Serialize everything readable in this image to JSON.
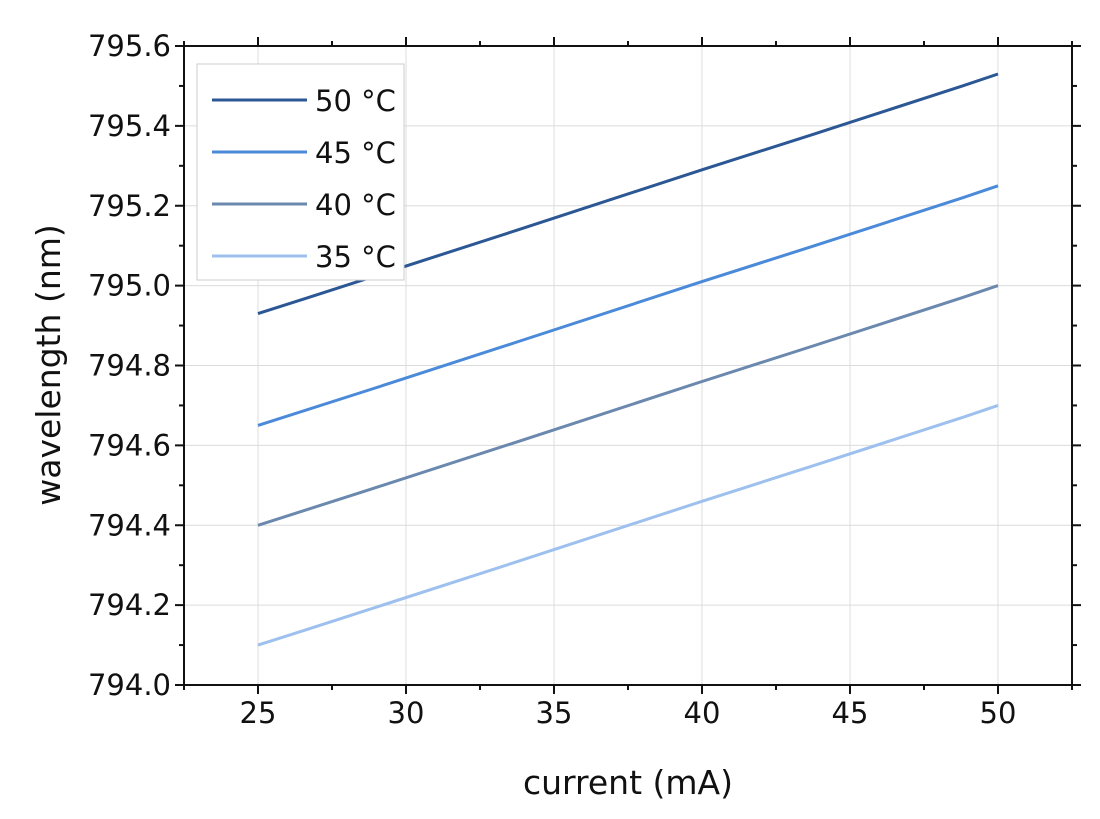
{
  "chart_data": {
    "type": "line",
    "title": "",
    "xlabel": "current (mA)",
    "ylabel": "wavelength (nm)",
    "xlim": [
      22.5,
      52.5
    ],
    "ylim": [
      794.0,
      795.6
    ],
    "xticks": [
      "25",
      "30",
      "35",
      "40",
      "45",
      "50"
    ],
    "yticks": [
      "794.0",
      "794.2",
      "794.4",
      "794.6",
      "794.8",
      "795.0",
      "795.2",
      "795.4",
      "795.6"
    ],
    "grid": true,
    "legend_position": "top-left",
    "series": [
      {
        "name": "50 °C",
        "color": "#2b5794",
        "points": [
          [
            25,
            794.93
          ],
          [
            26.7,
            794.97
          ],
          [
            33.8,
            795.14
          ],
          [
            40,
            795.29
          ],
          [
            43.8,
            795.38
          ],
          [
            48.8,
            795.5
          ],
          [
            50,
            795.53
          ]
        ]
      },
      {
        "name": "45 °C",
        "color": "#4a8ad9",
        "points": [
          [
            25,
            794.65
          ],
          [
            28.8,
            794.74
          ],
          [
            33.8,
            794.86
          ],
          [
            40,
            795.01
          ],
          [
            43.8,
            795.1
          ],
          [
            48.8,
            795.22
          ],
          [
            50,
            795.25
          ]
        ]
      },
      {
        "name": "40 °C",
        "color": "#6b88ae",
        "points": [
          [
            25,
            794.4
          ],
          [
            28.8,
            794.49
          ],
          [
            33.8,
            794.61
          ],
          [
            40,
            794.76
          ],
          [
            43.8,
            794.85
          ],
          [
            48.8,
            794.97
          ],
          [
            50,
            795.0
          ]
        ]
      },
      {
        "name": "35 °C",
        "color": "#9dc0ee",
        "points": [
          [
            25,
            794.1
          ],
          [
            26.7,
            794.14
          ],
          [
            33.8,
            794.31
          ],
          [
            40,
            794.46
          ],
          [
            43.8,
            794.55
          ],
          [
            48.8,
            794.67
          ],
          [
            50,
            794.7
          ]
        ]
      }
    ]
  }
}
